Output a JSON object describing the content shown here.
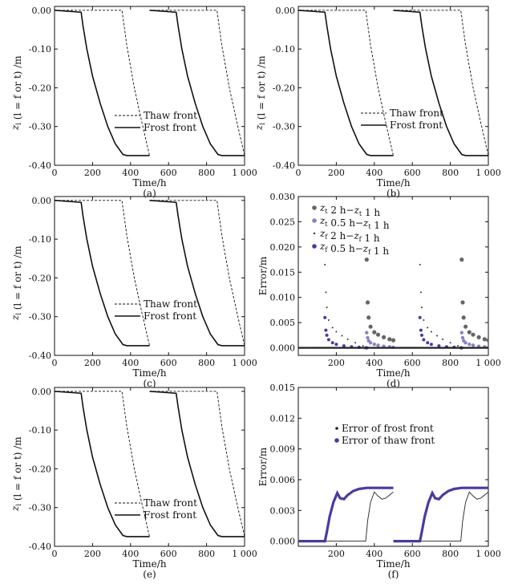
{
  "colors": {
    "axis": "#111111",
    "black_series": "#222222",
    "purple_series": "#4b3a9e",
    "light_purple": "#8c80c8"
  },
  "chart_data": [
    {
      "id": "a",
      "caption": "(a)",
      "type": "line",
      "xlabel": "Time/h",
      "ylabel": "z_l (l = f or t) /m",
      "xlim": [
        0,
        1000
      ],
      "ylim": [
        -0.4,
        0.01
      ],
      "xticks": [
        "0",
        "200",
        "400",
        "600",
        "800",
        "1 000"
      ],
      "yticks": [
        "0.00",
        "-0.10",
        "-0.20",
        "-0.30",
        "-0.40"
      ],
      "legend": {
        "position": "center-left-lower",
        "entries": [
          "Thaw front",
          "Frost front"
        ]
      },
      "series": [
        {
          "name": "Thaw front",
          "style": "dashed",
          "segments": [
            {
              "x": [
                0,
                140,
                350,
                355,
                380,
                420,
                460,
                500
              ],
              "y": [
                0.0,
                0.0,
                0.0,
                0.0,
                -0.09,
                -0.2,
                -0.29,
                -0.375
              ]
            },
            {
              "x": [
                500,
                640,
                850,
                855,
                880,
                920,
                960,
                1000
              ],
              "y": [
                0.0,
                0.0,
                0.0,
                0.0,
                -0.09,
                -0.2,
                -0.29,
                -0.375
              ]
            }
          ]
        },
        {
          "name": "Frost front",
          "style": "solid",
          "segments": [
            {
              "x": [
                0,
                140,
                150,
                170,
                200,
                240,
                280,
                320,
                360,
                380,
                500
              ],
              "y": [
                0.0,
                -0.005,
                -0.04,
                -0.1,
                -0.17,
                -0.24,
                -0.3,
                -0.345,
                -0.372,
                -0.375,
                -0.375
              ]
            },
            {
              "x": [
                500,
                640,
                650,
                670,
                700,
                740,
                780,
                820,
                860,
                880,
                1000
              ],
              "y": [
                0.0,
                -0.005,
                -0.04,
                -0.1,
                -0.17,
                -0.24,
                -0.3,
                -0.345,
                -0.372,
                -0.375,
                -0.375
              ]
            }
          ]
        }
      ]
    },
    {
      "id": "b",
      "caption": "(b)",
      "type": "line",
      "xlabel": "Time/h",
      "ylabel": "z_l (l = f or t) /m",
      "xlim": [
        0,
        1000
      ],
      "ylim": [
        -0.4,
        0.01
      ],
      "xticks": [
        "0",
        "200",
        "400",
        "600",
        "800",
        "1 000"
      ],
      "yticks": [
        "0.00",
        "-0.10",
        "-0.20",
        "-0.30",
        "-0.40"
      ],
      "legend": {
        "position": "center-left-lower",
        "entries": [
          "Thaw front",
          "Frost front"
        ]
      },
      "series": [
        {
          "name": "Thaw front",
          "style": "dashed",
          "segments": [
            {
              "x": [
                0,
                140,
                350,
                355,
                380,
                420,
                460,
                500
              ],
              "y": [
                0.0,
                0.0,
                0.0,
                0.0,
                -0.09,
                -0.2,
                -0.29,
                -0.375
              ]
            },
            {
              "x": [
                500,
                640,
                850,
                855,
                880,
                920,
                960,
                1000
              ],
              "y": [
                0.0,
                0.0,
                0.0,
                0.0,
                -0.09,
                -0.2,
                -0.29,
                -0.375
              ]
            }
          ]
        },
        {
          "name": "Frost front",
          "style": "solid",
          "segments": [
            {
              "x": [
                0,
                140,
                150,
                170,
                200,
                240,
                280,
                320,
                360,
                380,
                500
              ],
              "y": [
                0.0,
                -0.005,
                -0.04,
                -0.1,
                -0.17,
                -0.24,
                -0.3,
                -0.345,
                -0.372,
                -0.375,
                -0.375
              ]
            },
            {
              "x": [
                500,
                640,
                650,
                670,
                700,
                740,
                780,
                820,
                860,
                880,
                1000
              ],
              "y": [
                0.0,
                -0.005,
                -0.04,
                -0.1,
                -0.17,
                -0.24,
                -0.3,
                -0.345,
                -0.372,
                -0.375,
                -0.375
              ]
            }
          ]
        }
      ]
    },
    {
      "id": "c",
      "caption": "(c)",
      "type": "line",
      "xlabel": "Time/h",
      "ylabel": "z_l (l = f or t) /m",
      "xlim": [
        0,
        1000
      ],
      "ylim": [
        -0.4,
        0.01
      ],
      "xticks": [
        "0",
        "200",
        "400",
        "600",
        "800",
        "1 000"
      ],
      "yticks": [
        "0.00",
        "-0.10",
        "-0.20",
        "-0.30",
        "-0.40"
      ],
      "legend": {
        "position": "bottom-center",
        "entries": [
          "Thaw front",
          "Frost front"
        ]
      },
      "series": [
        {
          "name": "Thaw front",
          "style": "dashed",
          "segments": [
            {
              "x": [
                0,
                140,
                350,
                355,
                380,
                420,
                460,
                500
              ],
              "y": [
                0.0,
                0.0,
                0.0,
                0.0,
                -0.09,
                -0.2,
                -0.29,
                -0.375
              ]
            },
            {
              "x": [
                500,
                640,
                850,
                855,
                880,
                920,
                960,
                1000
              ],
              "y": [
                0.0,
                0.0,
                0.0,
                0.0,
                -0.09,
                -0.2,
                -0.29,
                -0.375
              ]
            }
          ]
        },
        {
          "name": "Frost front",
          "style": "solid",
          "segments": [
            {
              "x": [
                0,
                140,
                150,
                170,
                200,
                240,
                280,
                320,
                360,
                380,
                500
              ],
              "y": [
                0.0,
                -0.005,
                -0.04,
                -0.1,
                -0.17,
                -0.24,
                -0.3,
                -0.345,
                -0.372,
                -0.375,
                -0.375
              ]
            },
            {
              "x": [
                500,
                640,
                650,
                670,
                700,
                740,
                780,
                820,
                860,
                880,
                1000
              ],
              "y": [
                0.0,
                -0.005,
                -0.04,
                -0.1,
                -0.17,
                -0.24,
                -0.3,
                -0.345,
                -0.372,
                -0.375,
                -0.375
              ]
            }
          ]
        }
      ]
    },
    {
      "id": "d",
      "caption": "(d)",
      "type": "scatter",
      "xlabel": "Time/h",
      "ylabel": "Error/m",
      "xlim": [
        0,
        1000
      ],
      "ylim": [
        -0.0015,
        0.03
      ],
      "xticks": [
        "200",
        "400",
        "600",
        "800",
        "1 000"
      ],
      "yticks": [
        "0.000",
        "0.005",
        "0.010",
        "0.015",
        "0.020",
        "0.025",
        "0.030"
      ],
      "legend": {
        "position": "top-left",
        "entries": [
          "z_t 2 h−z_t 1 h",
          "z_t 0.5 h−z_t 1 h",
          "z_f 2 h−z_f 1 h",
          "z_f 0.5 h−z_f 1 h"
        ]
      },
      "series": [
        {
          "name": "z_t 2 h−z_t 1 h",
          "marker": "gray-dot",
          "x": [
            360,
            365,
            370,
            380,
            400,
            420,
            450,
            480,
            500,
            860,
            865,
            870,
            880,
            900,
            920,
            950,
            980,
            1000
          ],
          "y": [
            0.0175,
            0.009,
            0.006,
            0.0042,
            0.0031,
            0.0026,
            0.0021,
            0.0017,
            0.0015,
            0.0175,
            0.009,
            0.006,
            0.0042,
            0.0031,
            0.0026,
            0.0021,
            0.0017,
            0.0015
          ]
        },
        {
          "name": "z_t 0.5 h−z_t 1 h",
          "marker": "purple-dot",
          "x": [
            355,
            360,
            365,
            370,
            380,
            400,
            420,
            450,
            480,
            500,
            855,
            860,
            865,
            870,
            880,
            900,
            920,
            950,
            980,
            1000
          ],
          "y": [
            0.0,
            0.003,
            0.002,
            0.0014,
            0.001,
            0.0007,
            0.0005,
            0.0003,
            0.0002,
            0.0001,
            0.0,
            0.003,
            0.002,
            0.0014,
            0.001,
            0.0007,
            0.0005,
            0.0003,
            0.0002,
            0.0001
          ]
        },
        {
          "name": "z_f 2 h−z_f 1 h",
          "marker": "small-dot",
          "x": [
            140,
            145,
            150,
            160,
            180,
            200,
            230,
            260,
            300,
            340,
            360,
            640,
            645,
            650,
            660,
            680,
            700,
            730,
            760,
            800,
            840,
            860
          ],
          "y": [
            0.0165,
            0.011,
            0.008,
            0.0055,
            0.004,
            0.0032,
            0.0024,
            0.0017,
            0.001,
            0.0004,
            0.0001,
            0.0165,
            0.011,
            0.008,
            0.0055,
            0.004,
            0.0032,
            0.0024,
            0.0017,
            0.001,
            0.0004,
            0.0001
          ]
        },
        {
          "name": "z_f 0.5 h−z_f 1 h",
          "marker": "purple-dot",
          "x": [
            140,
            145,
            150,
            160,
            180,
            200,
            240,
            280,
            320,
            360,
            640,
            645,
            650,
            660,
            680,
            700,
            740,
            780,
            820,
            860
          ],
          "y": [
            0.006,
            0.0035,
            0.0025,
            0.0016,
            0.001,
            0.0007,
            0.0004,
            0.0002,
            0.0001,
            0.0,
            0.006,
            0.0035,
            0.0025,
            0.0016,
            0.001,
            0.0007,
            0.0004,
            0.0002,
            0.0001,
            0.0
          ]
        }
      ]
    },
    {
      "id": "e",
      "caption": "(e)",
      "type": "line",
      "xlabel": "Time/h",
      "ylabel": "z_l (l = f or t) /m",
      "xlim": [
        0,
        1000
      ],
      "ylim": [
        -0.4,
        0.01
      ],
      "xticks": [
        "0",
        "200",
        "400",
        "600",
        "800",
        "1 000"
      ],
      "yticks": [
        "0.00",
        "-0.10",
        "-0.20",
        "-0.30",
        "-0.40"
      ],
      "legend": {
        "position": "bottom-center",
        "entries": [
          "Thaw front",
          "Frost front"
        ]
      },
      "series": [
        {
          "name": "Thaw front",
          "style": "dashed",
          "segments": [
            {
              "x": [
                0,
                140,
                350,
                355,
                380,
                420,
                460,
                500
              ],
              "y": [
                0.0,
                0.0,
                0.0,
                0.0,
                -0.09,
                -0.2,
                -0.29,
                -0.375
              ]
            },
            {
              "x": [
                500,
                640,
                850,
                855,
                880,
                920,
                960,
                1000
              ],
              "y": [
                0.0,
                0.0,
                0.0,
                0.0,
                -0.09,
                -0.2,
                -0.29,
                -0.375
              ]
            }
          ]
        },
        {
          "name": "Frost front",
          "style": "solid",
          "segments": [
            {
              "x": [
                0,
                140,
                150,
                170,
                200,
                240,
                280,
                320,
                360,
                380,
                500
              ],
              "y": [
                0.0,
                -0.005,
                -0.04,
                -0.1,
                -0.17,
                -0.24,
                -0.3,
                -0.345,
                -0.372,
                -0.375,
                -0.375
              ]
            },
            {
              "x": [
                500,
                640,
                650,
                670,
                700,
                740,
                780,
                820,
                860,
                880,
                1000
              ],
              "y": [
                0.0,
                -0.005,
                -0.04,
                -0.1,
                -0.17,
                -0.24,
                -0.3,
                -0.345,
                -0.372,
                -0.375,
                -0.375
              ]
            }
          ]
        }
      ]
    },
    {
      "id": "f",
      "caption": "(f)",
      "type": "line",
      "xlabel": "Time/h",
      "ylabel": "Error/m",
      "xlim": [
        0,
        1000
      ],
      "ylim": [
        -0.0005,
        0.015
      ],
      "xticks": [
        "200",
        "400",
        "600",
        "800",
        "1 000"
      ],
      "yticks": [
        "0.000",
        "0.003",
        "0.006",
        "0.009",
        "0.012",
        "0.015"
      ],
      "legend": {
        "position": "upper-center",
        "entries": [
          "Error of frost front",
          "Error of thaw front"
        ]
      },
      "series": [
        {
          "name": "Error of frost front",
          "style": "thin-black",
          "segments": [
            {
              "x": [
                0,
                350,
                355,
                365,
                380,
                400,
                420,
                440,
                460,
                480,
                500
              ],
              "y": [
                0.0,
                0.0,
                0.0,
                0.002,
                0.0038,
                0.0048,
                0.0044,
                0.0041,
                0.0042,
                0.0045,
                0.0048
              ]
            },
            {
              "x": [
                500,
                850,
                855,
                865,
                880,
                900,
                920,
                940,
                960,
                980,
                1000
              ],
              "y": [
                0.0,
                0.0,
                0.0,
                0.002,
                0.0038,
                0.0048,
                0.0044,
                0.0041,
                0.0042,
                0.0045,
                0.0048
              ]
            }
          ]
        },
        {
          "name": "Error of thaw front",
          "style": "thick-purple",
          "segments": [
            {
              "x": [
                0,
                140,
                150,
                165,
                185,
                205,
                220,
                240,
                260,
                290,
                320,
                360,
                400,
                500
              ],
              "y": [
                0.0,
                0.0,
                0.0009,
                0.0024,
                0.0038,
                0.0047,
                0.0042,
                0.0041,
                0.0045,
                0.0049,
                0.0051,
                0.0052,
                0.0052,
                0.0052
              ]
            },
            {
              "x": [
                500,
                640,
                650,
                665,
                685,
                705,
                720,
                740,
                760,
                790,
                820,
                860,
                900,
                1000
              ],
              "y": [
                0.0,
                0.0,
                0.0009,
                0.0024,
                0.0038,
                0.0047,
                0.0042,
                0.0041,
                0.0045,
                0.0049,
                0.0051,
                0.0052,
                0.0052,
                0.0052
              ]
            }
          ]
        }
      ]
    }
  ]
}
